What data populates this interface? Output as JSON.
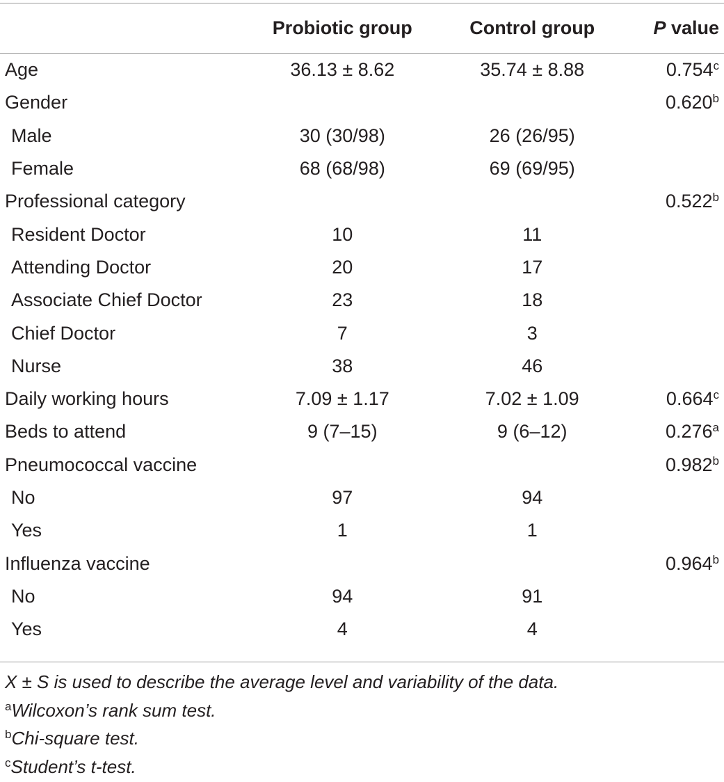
{
  "table": {
    "headers": {
      "label": "",
      "probiotic": "Probiotic group",
      "control": "Control group",
      "p_italic": "P",
      "p_rest": " value"
    },
    "rows": [
      {
        "label": "Age",
        "indent": false,
        "probiotic": "36.13 ± 8.62",
        "control": "35.74 ± 8.88",
        "p": "0.754",
        "p_sup": "c"
      },
      {
        "label": "Gender",
        "indent": false,
        "probiotic": "",
        "control": "",
        "p": "0.620",
        "p_sup": "b"
      },
      {
        "label": "Male",
        "indent": true,
        "probiotic": "30 (30/98)",
        "control": "26 (26/95)",
        "p": "",
        "p_sup": ""
      },
      {
        "label": "Female",
        "indent": true,
        "probiotic": "68 (68/98)",
        "control": "69 (69/95)",
        "p": "",
        "p_sup": ""
      },
      {
        "label": "Professional category",
        "indent": false,
        "probiotic": "",
        "control": "",
        "p": "0.522",
        "p_sup": "b"
      },
      {
        "label": "Resident Doctor",
        "indent": true,
        "probiotic": "10",
        "control": "11",
        "p": "",
        "p_sup": ""
      },
      {
        "label": "Attending Doctor",
        "indent": true,
        "probiotic": "20",
        "control": "17",
        "p": "",
        "p_sup": ""
      },
      {
        "label": "Associate Chief Doctor",
        "indent": true,
        "probiotic": "23",
        "control": "18",
        "p": "",
        "p_sup": ""
      },
      {
        "label": "Chief Doctor",
        "indent": true,
        "probiotic": "7",
        "control": "3",
        "p": "",
        "p_sup": ""
      },
      {
        "label": "Nurse",
        "indent": true,
        "probiotic": "38",
        "control": "46",
        "p": "",
        "p_sup": ""
      },
      {
        "label": "Daily working hours",
        "indent": false,
        "probiotic": "7.09 ± 1.17",
        "control": "7.02 ± 1.09",
        "p": "0.664",
        "p_sup": "c"
      },
      {
        "label": "Beds to attend",
        "indent": false,
        "probiotic": "9 (7–15)",
        "control": "9 (6–12)",
        "p": "0.276",
        "p_sup": "a"
      },
      {
        "label": "Pneumococcal vaccine",
        "indent": false,
        "probiotic": "",
        "control": "",
        "p": "0.982",
        "p_sup": "b"
      },
      {
        "label": "No",
        "indent": true,
        "probiotic": "97",
        "control": "94",
        "p": "",
        "p_sup": ""
      },
      {
        "label": "Yes",
        "indent": true,
        "probiotic": "1",
        "control": "1",
        "p": "",
        "p_sup": ""
      },
      {
        "label": "Influenza vaccine",
        "indent": false,
        "probiotic": "",
        "control": "",
        "p": "0.964",
        "p_sup": "b"
      },
      {
        "label": "No",
        "indent": true,
        "probiotic": "94",
        "control": "91",
        "p": "",
        "p_sup": ""
      },
      {
        "label": "Yes",
        "indent": true,
        "probiotic": "4",
        "control": "4",
        "p": "",
        "p_sup": ""
      }
    ]
  },
  "footnotes": [
    {
      "mark": "",
      "text": "X ± S is used to describe the average level and variability of the data."
    },
    {
      "mark": "a",
      "text": "Wilcoxon’s rank sum test."
    },
    {
      "mark": "b",
      "text": "Chi-square test."
    },
    {
      "mark": "c",
      "text": "Student’s t-test."
    }
  ]
}
